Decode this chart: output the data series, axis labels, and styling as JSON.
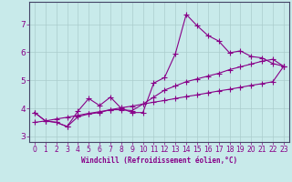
{
  "xlabel": "Windchill (Refroidissement éolien,°C)",
  "bg_color": "#c8eaea",
  "line_color": "#880088",
  "grid_color": "#aacccc",
  "x_data": [
    0,
    1,
    2,
    3,
    4,
    5,
    6,
    7,
    8,
    9,
    10,
    11,
    12,
    13,
    14,
    15,
    16,
    17,
    18,
    19,
    20,
    21,
    22,
    23
  ],
  "y_zigzag": [
    3.85,
    3.55,
    3.5,
    3.35,
    3.9,
    4.35,
    4.1,
    4.4,
    4.0,
    3.85,
    3.85,
    4.9,
    5.1,
    5.95,
    7.35,
    6.95,
    6.6,
    6.4,
    5.98,
    6.05,
    5.85,
    5.8,
    5.6,
    5.5
  ],
  "y_smooth": [
    3.85,
    3.55,
    3.5,
    3.35,
    3.7,
    3.8,
    3.85,
    3.95,
    3.95,
    3.92,
    4.15,
    4.4,
    4.65,
    4.8,
    4.95,
    5.05,
    5.15,
    5.25,
    5.38,
    5.48,
    5.58,
    5.68,
    5.75,
    5.5
  ],
  "y_linear": [
    3.5,
    3.55,
    3.62,
    3.68,
    3.75,
    3.82,
    3.88,
    3.95,
    4.02,
    4.08,
    4.15,
    4.22,
    4.28,
    4.35,
    4.42,
    4.48,
    4.55,
    4.62,
    4.68,
    4.75,
    4.82,
    4.88,
    4.95,
    5.5
  ],
  "xlim": [
    -0.5,
    23.5
  ],
  "ylim": [
    2.8,
    7.8
  ],
  "xticks": [
    0,
    1,
    2,
    3,
    4,
    5,
    6,
    7,
    8,
    9,
    10,
    11,
    12,
    13,
    14,
    15,
    16,
    17,
    18,
    19,
    20,
    21,
    22,
    23
  ],
  "yticks": [
    3,
    4,
    5,
    6,
    7
  ],
  "marker": "+",
  "marker_size": 4,
  "line_width": 0.8,
  "tick_fontsize": 5.5,
  "xlabel_fontsize": 5.5
}
